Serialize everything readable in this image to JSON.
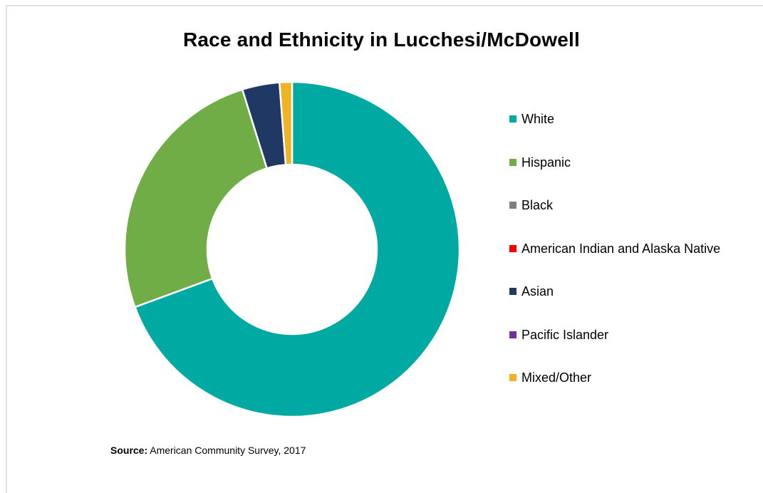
{
  "chart_data": {
    "type": "pie",
    "title": "Race and Ethnicity in Lucchesi/McDowell",
    "categories": [
      "White",
      "Hispanic",
      "Black",
      "American Indian and Alaska Native",
      "Asian",
      "Pacific Islander",
      "Mixed/Other"
    ],
    "values": [
      69.4,
      25.8,
      0,
      0,
      3.6,
      0,
      1.2
    ],
    "colors": [
      "#00A9A2",
      "#70AD47",
      "#7F7F7F",
      "#FF0000",
      "#1F3864",
      "#7030A0",
      "#F0B323"
    ],
    "donut": true,
    "legend_position": "right",
    "source_label": "Source:",
    "source_text": "American Community Survey, 2017"
  }
}
